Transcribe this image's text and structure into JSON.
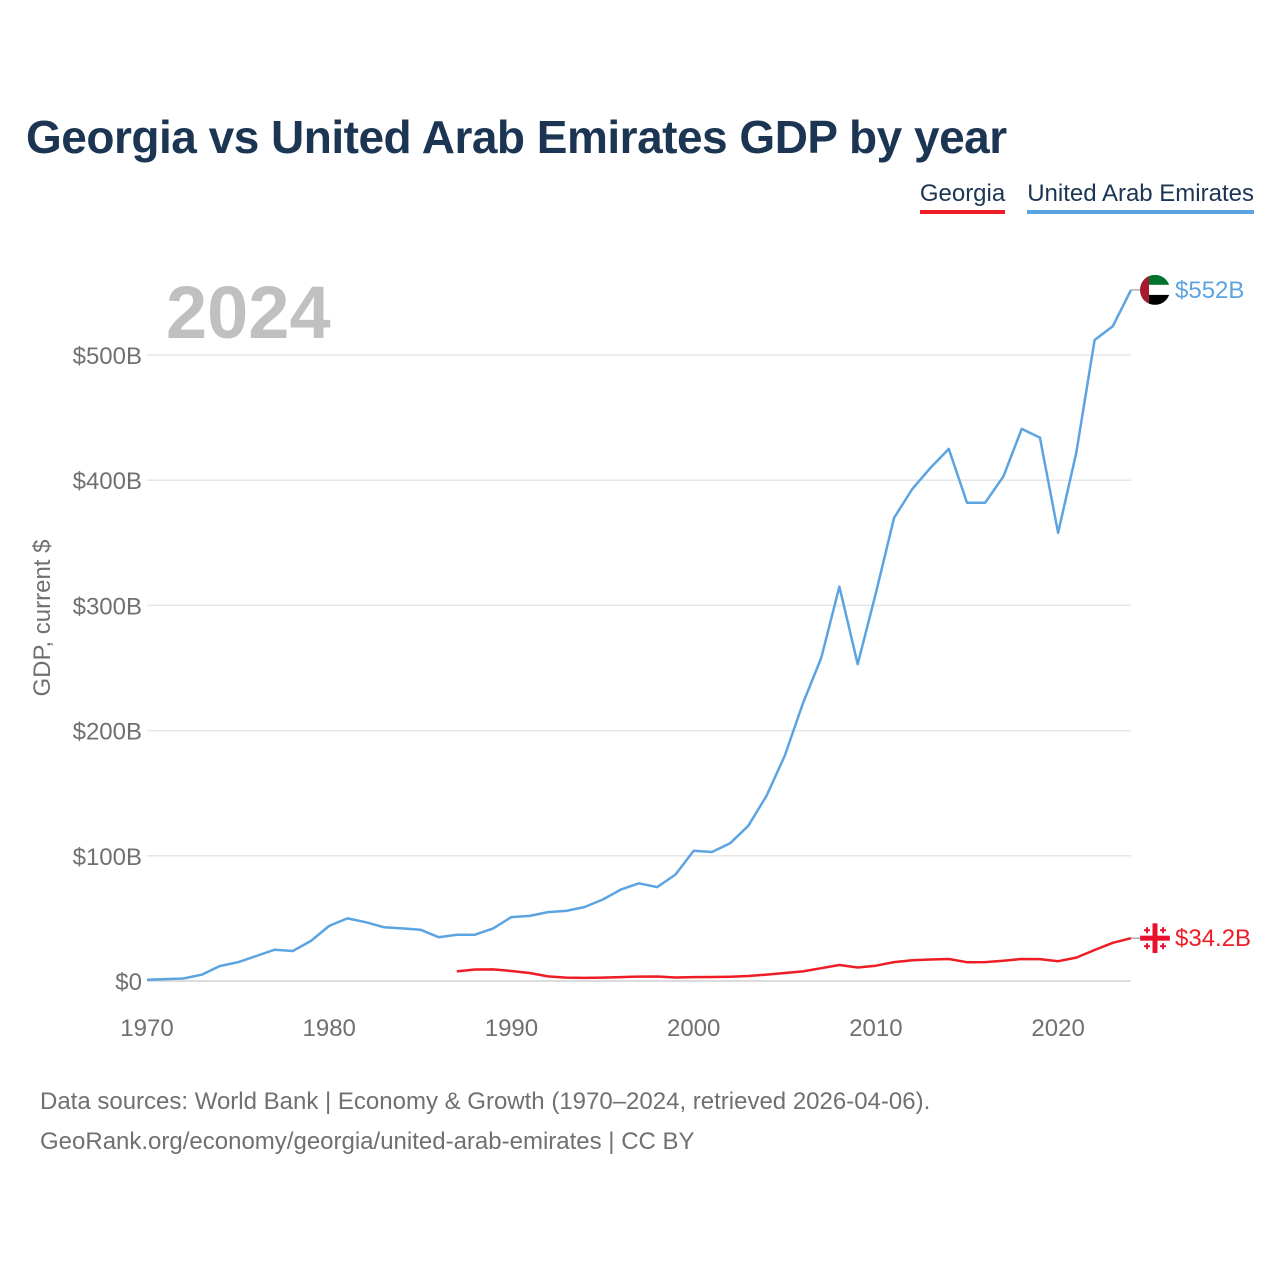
{
  "chart_data": {
    "type": "line",
    "title": "Georgia vs United Arab Emirates GDP by year",
    "ylabel": "GDP, current $",
    "xlabel": "",
    "year_label": "2024",
    "xlim": [
      1970,
      2024
    ],
    "ylim": [
      0,
      500
    ],
    "x_ticks": [
      1970,
      1980,
      1990,
      2000,
      2010,
      2020
    ],
    "y_ticks": [
      {
        "value": 0,
        "label": "$0"
      },
      {
        "value": 100,
        "label": "$100B"
      },
      {
        "value": 200,
        "label": "$200B"
      },
      {
        "value": 300,
        "label": "$300B"
      },
      {
        "value": 400,
        "label": "$400B"
      },
      {
        "value": 500,
        "label": "$500B"
      }
    ],
    "grid": true,
    "legend_placement": "top-right",
    "series": [
      {
        "name": "United Arab Emirates",
        "color": "#5ca4e1",
        "end_label": "$552B",
        "flag_icon": "uae-flag-icon",
        "x": [
          1970,
          1971,
          1972,
          1973,
          1974,
          1975,
          1976,
          1977,
          1978,
          1979,
          1980,
          1981,
          1982,
          1983,
          1984,
          1985,
          1986,
          1987,
          1988,
          1989,
          1990,
          1991,
          1992,
          1993,
          1994,
          1995,
          1996,
          1997,
          1998,
          1999,
          2000,
          2001,
          2002,
          2003,
          2004,
          2005,
          2006,
          2007,
          2008,
          2009,
          2010,
          2011,
          2012,
          2013,
          2014,
          2015,
          2016,
          2017,
          2018,
          2019,
          2020,
          2021,
          2022,
          2023,
          2024
        ],
        "values": [
          1,
          1.5,
          2,
          5,
          12,
          15,
          20,
          25,
          24,
          32,
          44,
          50,
          47,
          43,
          42,
          41,
          35,
          37,
          37,
          42,
          51,
          52,
          55,
          56,
          59,
          65,
          73,
          78,
          75,
          85,
          104,
          103,
          110,
          124,
          148,
          180,
          222,
          258,
          315,
          253,
          310,
          370,
          393,
          410,
          425,
          382,
          382,
          403,
          441,
          434,
          358,
          422,
          512,
          523,
          552
        ]
      },
      {
        "name": "Georgia",
        "color": "#ee1c25",
        "end_label": "$34.2B",
        "flag_icon": "georgia-flag-icon",
        "x": [
          1987,
          1988,
          1989,
          1990,
          1991,
          1992,
          1993,
          1994,
          1995,
          1996,
          1997,
          1998,
          1999,
          2000,
          2001,
          2002,
          2003,
          2004,
          2005,
          2006,
          2007,
          2008,
          2009,
          2010,
          2011,
          2012,
          2013,
          2014,
          2015,
          2016,
          2017,
          2018,
          2019,
          2020,
          2021,
          2022,
          2023,
          2024
        ],
        "values": [
          7.7,
          9.2,
          9.3,
          8,
          6.4,
          3.7,
          2.7,
          2.5,
          2.7,
          3.1,
          3.5,
          3.6,
          2.8,
          3.1,
          3.2,
          3.4,
          4,
          5.1,
          6.4,
          7.7,
          10.2,
          12.8,
          10.8,
          12.2,
          15.1,
          16.5,
          17.2,
          17.6,
          15,
          15.1,
          16.2,
          17.6,
          17.5,
          15.8,
          18.7,
          24.8,
          30.5,
          34.2
        ]
      }
    ]
  },
  "footer": {
    "line1": "Data sources: World Bank | Economy & Growth (1970–2024, retrieved 2026-04-06).",
    "line2": "GeoRank.org/economy/georgia/united-arab-emirates | CC BY"
  }
}
